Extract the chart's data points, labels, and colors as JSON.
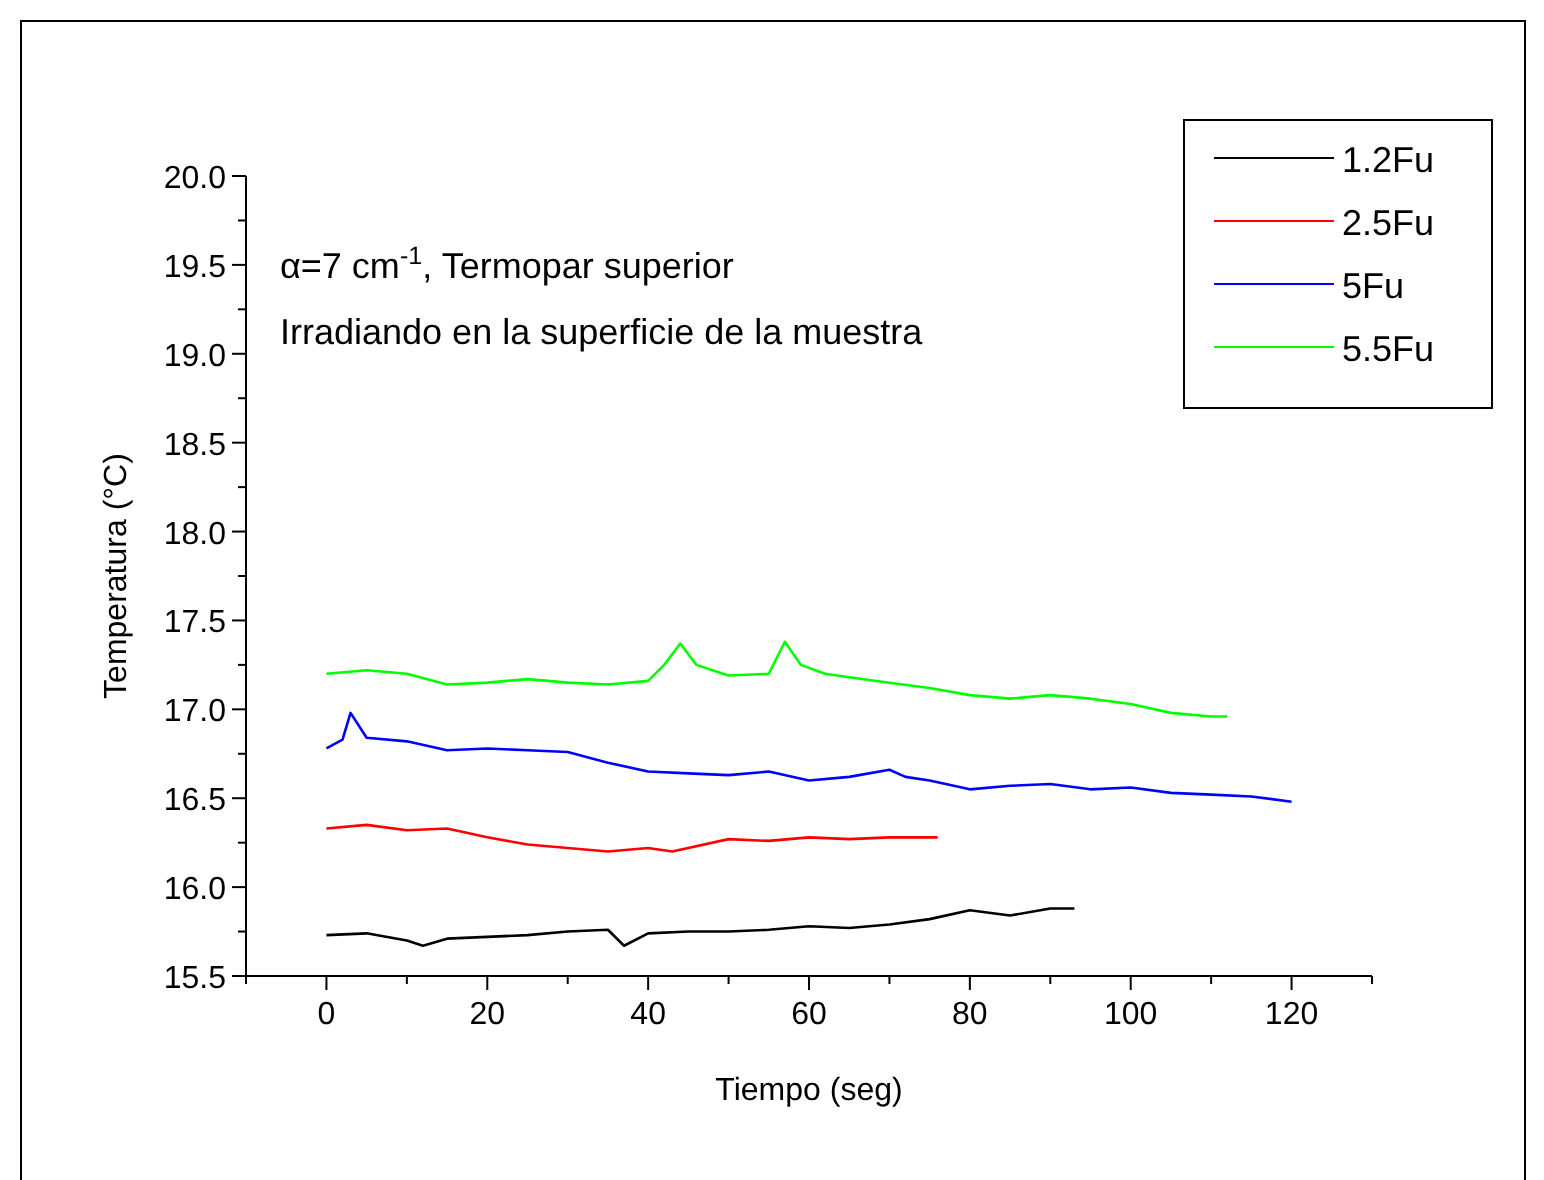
{
  "chart_data": {
    "type": "line",
    "xlabel": "Tiempo (seg)",
    "ylabel": "Temperatura (°C)",
    "annotations": [
      "α=7 cm$^{-1}$, Termopar superior",
      "Irradiando en la superficie de la muestra"
    ],
    "xlim": [
      -10,
      130
    ],
    "ylim": [
      15.5,
      20.0
    ],
    "xticks": [
      {
        "value": -10,
        "label": null
      },
      0,
      {
        "value": 10,
        "label": null
      },
      20,
      {
        "value": 30,
        "label": null
      },
      40,
      {
        "value": 50,
        "label": null
      },
      60,
      {
        "value": 70,
        "label": null
      },
      80,
      {
        "value": 90,
        "label": null
      },
      100,
      {
        "value": 110,
        "label": null
      },
      120,
      {
        "value": 130,
        "label": null
      }
    ],
    "yticks": [
      {
        "value": 15.5,
        "label": "15.5"
      },
      {
        "value": 15.75,
        "label": null
      },
      {
        "value": 16.0,
        "label": "16.0"
      },
      {
        "value": 16.25,
        "label": null
      },
      {
        "value": 16.5,
        "label": "16.5"
      },
      {
        "value": 16.75,
        "label": null
      },
      {
        "value": 17.0,
        "label": "17.0"
      },
      {
        "value": 17.25,
        "label": null
      },
      {
        "value": 17.5,
        "label": "17.5"
      },
      {
        "value": 17.75,
        "label": null
      },
      {
        "value": 18.0,
        "label": "18.0"
      },
      {
        "value": 18.25,
        "label": null
      },
      {
        "value": 18.5,
        "label": "18.5"
      },
      {
        "value": 18.75,
        "label": null
      },
      {
        "value": 19.0,
        "label": "19.0"
      },
      {
        "value": 19.25,
        "label": null
      },
      {
        "value": 19.5,
        "label": "19.5"
      },
      {
        "value": 19.75,
        "label": null
      },
      {
        "value": 20.0,
        "label": "20.0"
      }
    ],
    "grid": false,
    "legend": "top right",
    "marker": "none",
    "line_style": "solid",
    "series": [
      {
        "name": "1.2Fu",
        "color": "#000000",
        "x": [
          0,
          5,
          10,
          12,
          15,
          20,
          25,
          30,
          35,
          37,
          40,
          45,
          50,
          55,
          60,
          65,
          70,
          75,
          80,
          85,
          90,
          93
        ],
        "values": [
          15.73,
          15.74,
          15.7,
          15.67,
          15.71,
          15.72,
          15.73,
          15.75,
          15.76,
          15.67,
          15.74,
          15.75,
          15.75,
          15.76,
          15.78,
          15.77,
          15.79,
          15.82,
          15.87,
          15.84,
          15.88,
          15.88
        ]
      },
      {
        "name": "2.5Fu",
        "color": "#ff0000",
        "x": [
          0,
          5,
          10,
          15,
          20,
          25,
          30,
          35,
          40,
          43,
          50,
          55,
          60,
          65,
          70,
          76
        ],
        "values": [
          16.33,
          16.35,
          16.32,
          16.33,
          16.28,
          16.24,
          16.22,
          16.2,
          16.22,
          16.2,
          16.27,
          16.26,
          16.28,
          16.27,
          16.28,
          16.28
        ]
      },
      {
        "name": "5Fu",
        "color": "#0000ff",
        "x": [
          0,
          2,
          3,
          5,
          10,
          15,
          20,
          25,
          30,
          35,
          40,
          45,
          50,
          55,
          60,
          65,
          70,
          72,
          75,
          80,
          85,
          90,
          95,
          100,
          105,
          110,
          115,
          120
        ],
        "values": [
          16.78,
          16.83,
          16.98,
          16.84,
          16.82,
          16.77,
          16.78,
          16.77,
          16.76,
          16.7,
          16.65,
          16.64,
          16.63,
          16.65,
          16.6,
          16.62,
          16.66,
          16.62,
          16.6,
          16.55,
          16.57,
          16.58,
          16.55,
          16.56,
          16.53,
          16.52,
          16.51,
          16.48
        ]
      },
      {
        "name": "5.5Fu",
        "color": "#00ff00",
        "x": [
          0,
          5,
          10,
          15,
          20,
          25,
          30,
          35,
          40,
          42,
          44,
          46,
          50,
          55,
          57,
          59,
          62,
          65,
          70,
          75,
          80,
          85,
          90,
          95,
          100,
          105,
          110,
          112
        ],
        "values": [
          17.2,
          17.22,
          17.2,
          17.14,
          17.15,
          17.17,
          17.15,
          17.14,
          17.16,
          17.25,
          17.37,
          17.25,
          17.19,
          17.2,
          17.38,
          17.25,
          17.2,
          17.18,
          17.15,
          17.12,
          17.08,
          17.06,
          17.08,
          17.06,
          17.03,
          16.98,
          16.96,
          16.96
        ]
      }
    ]
  }
}
